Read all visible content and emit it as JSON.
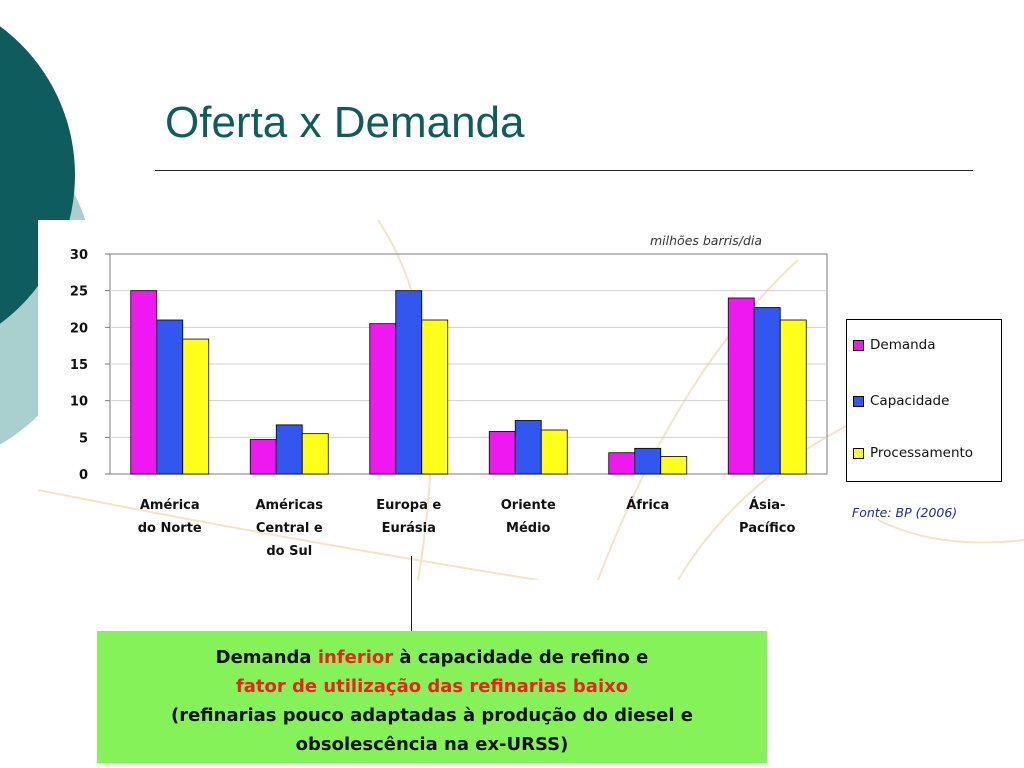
{
  "slide": {
    "title": "Oferta x Demanda",
    "accent_color": "#0f5c5c"
  },
  "chart_data": {
    "type": "bar",
    "title": "",
    "unit_label": "milhões barris/dia",
    "source": "Fonte: BP (2006)",
    "categories": [
      [
        "América",
        "do Norte"
      ],
      [
        "Américas",
        "Central e",
        "do Sul"
      ],
      [
        "Europa e",
        "Eurásia"
      ],
      [
        "Oriente",
        "Médio"
      ],
      [
        "África"
      ],
      [
        "Ásia-",
        "Pacífico"
      ]
    ],
    "series": [
      {
        "name": "Demanda",
        "color": "#f018f0",
        "values": [
          25,
          4.7,
          20.5,
          5.8,
          2.9,
          24
        ]
      },
      {
        "name": "Capacidade",
        "color": "#3256f0",
        "values": [
          21,
          6.7,
          25,
          7.3,
          3.5,
          22.7
        ]
      },
      {
        "name": "Processamento",
        "color": "#ffff1a",
        "values": [
          18.4,
          5.5,
          21,
          6,
          2.4,
          21
        ]
      }
    ],
    "ylim": [
      0,
      30
    ],
    "yticks": [
      0,
      5,
      10,
      15,
      20,
      25,
      30
    ],
    "grid": true,
    "legend_position": "right"
  },
  "callout": {
    "line1_a": "Demanda ",
    "line1_b": "inferior",
    "line1_c": " à capacidade de refino e",
    "line2": "fator de utilização das refinarias baixo",
    "line3": "(refinarias pouco adaptadas à produção do diesel e",
    "line4": "obsolescência na ex-URSS)",
    "highlight_color": "#e8251b",
    "background": "#86f25a"
  }
}
